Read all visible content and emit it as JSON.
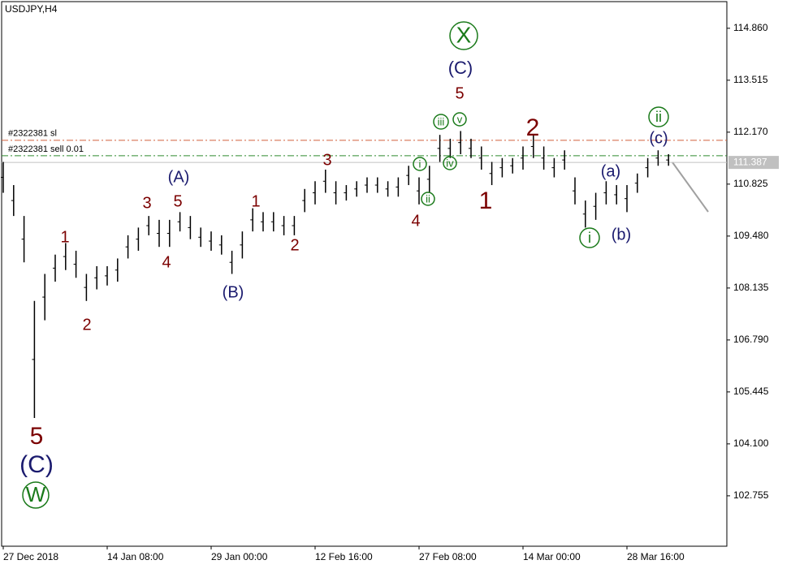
{
  "chart_data": {
    "type": "ohlc",
    "title": "USDJPY,H4",
    "color": "#000000",
    "categories": [
      "27 Dec 2018",
      null,
      null,
      null,
      null,
      null,
      null,
      null,
      null,
      null,
      "14 Jan 08:00",
      null,
      null,
      null,
      null,
      null,
      null,
      null,
      null,
      null,
      "29 Jan 00:00",
      null,
      null,
      null,
      null,
      null,
      null,
      null,
      null,
      null,
      "12 Feb 16:00",
      null,
      null,
      null,
      null,
      null,
      null,
      null,
      null,
      null,
      "27 Feb 08:00",
      null,
      null,
      null,
      null,
      null,
      null,
      null,
      null,
      null,
      "14 Mar 00:00",
      null,
      null,
      null,
      null,
      null,
      null,
      null,
      null,
      null,
      "28 Mar 16:00",
      null,
      null,
      null,
      null
    ],
    "high": [
      111.4,
      110.8,
      110.0,
      107.8,
      108.5,
      109.0,
      109.3,
      109.1,
      108.5,
      108.7,
      108.7,
      108.9,
      109.5,
      109.7,
      110.0,
      109.9,
      109.9,
      110.1,
      110.0,
      109.7,
      109.6,
      109.5,
      109.1,
      109.6,
      110.2,
      110.1,
      110.1,
      110.0,
      110.0,
      110.7,
      110.9,
      111.2,
      110.9,
      110.8,
      110.9,
      111.0,
      111.0,
      110.9,
      111.0,
      111.3,
      111.0,
      111.3,
      112.1,
      112.0,
      112.2,
      112.0,
      111.8,
      111.4,
      111.5,
      111.5,
      111.8,
      112.1,
      111.8,
      111.5,
      111.7,
      111.0,
      110.4,
      110.6,
      110.9,
      110.8,
      110.8,
      111.1,
      111.5,
      111.7,
      111.6
    ],
    "low": [
      110.6,
      110.0,
      108.8,
      104.77,
      107.3,
      108.3,
      108.6,
      108.4,
      107.8,
      108.1,
      108.2,
      108.3,
      108.9,
      109.1,
      109.5,
      109.2,
      109.2,
      109.6,
      109.4,
      109.2,
      109.1,
      109.0,
      108.5,
      108.9,
      109.6,
      109.6,
      109.6,
      109.5,
      109.5,
      110.1,
      110.3,
      110.6,
      110.3,
      110.4,
      110.5,
      110.6,
      110.6,
      110.5,
      110.5,
      110.8,
      110.3,
      110.6,
      111.4,
      111.5,
      111.6,
      111.5,
      111.2,
      110.8,
      111.0,
      111.1,
      111.2,
      111.5,
      111.2,
      111.0,
      111.2,
      110.3,
      109.7,
      109.9,
      110.3,
      110.3,
      110.1,
      110.6,
      111.0,
      111.3,
      111.3
    ],
    "ylim": [
      101.45,
      115.55
    ],
    "yticks": [
      {
        "value": 114.86,
        "label": "114.860"
      },
      {
        "value": 113.515,
        "label": "113.515"
      },
      {
        "value": 112.17,
        "label": "112.170"
      },
      {
        "value": 110.825,
        "label": "110.825"
      },
      {
        "value": 109.48,
        "label": "109.480"
      },
      {
        "value": 108.135,
        "label": "108.135"
      },
      {
        "value": 106.79,
        "label": "106.790"
      },
      {
        "value": 105.445,
        "label": "105.445"
      },
      {
        "value": 104.1,
        "label": "104.100"
      },
      {
        "value": 102.755,
        "label": "102.755"
      }
    ],
    "order_lines": [
      {
        "label": "#2322381 sl",
        "value": 111.96,
        "color": "#d2603c"
      },
      {
        "label": "#2322381 sell 0.01",
        "value": 111.56,
        "color": "#2e8b2e"
      }
    ],
    "last_price": 111.387,
    "annotations": [
      "5",
      "(C)",
      "W",
      "1",
      "2",
      "3",
      "4",
      "(A)",
      "5",
      "(B)",
      "1",
      "2",
      "3",
      "4",
      "i",
      "ii",
      "iii",
      "iv",
      "v",
      "5",
      "(C)",
      "X",
      "1",
      "2",
      "(a)",
      "(b)",
      "i",
      "(c)",
      "ii"
    ]
  }
}
